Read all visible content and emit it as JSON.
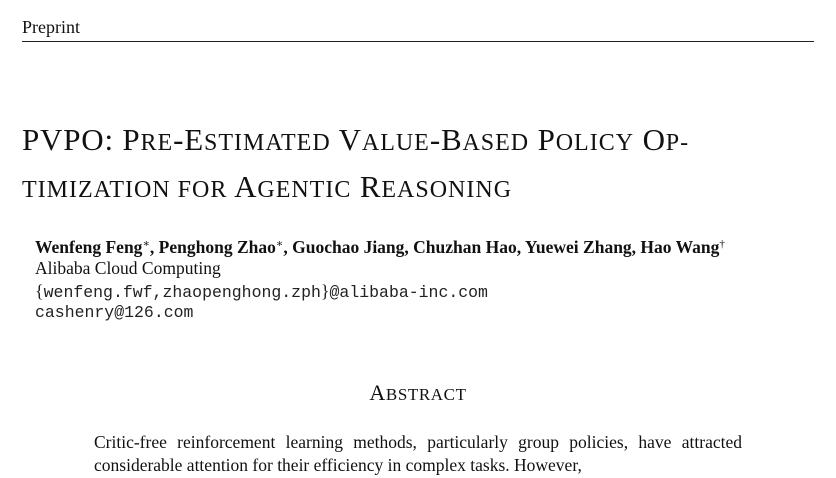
{
  "header": {
    "label": "Preprint"
  },
  "title": {
    "lead": "PVPO: P",
    "part1": "RE",
    "part2": "-E",
    "part3": "STIMATED",
    "part4": " V",
    "part5": "ALUE",
    "part6": "-B",
    "part7": "ASED",
    "part8": " P",
    "part9": "OLICY",
    "part10": " O",
    "part11": "P-",
    "part12": "TIMIZATION FOR",
    "part13": " A",
    "part14": "GENTIC",
    "part15": " R",
    "part16": "EASONING"
  },
  "authors": [
    {
      "name": "Wenfeng Feng",
      "mark": "∗",
      "sep": ", "
    },
    {
      "name": "Penghong Zhao",
      "mark": "∗",
      "sep": ", "
    },
    {
      "name": "Guochao Jiang",
      "mark": "",
      "sep": ", "
    },
    {
      "name": "Chuzhan Hao",
      "mark": "",
      "sep": ", "
    },
    {
      "name": "Yuewei Zhang",
      "mark": "",
      "sep": ", "
    },
    {
      "name": "Hao Wang",
      "mark": "†",
      "sep": ""
    }
  ],
  "affiliation": "Alibaba Cloud Computing",
  "emails": {
    "open_brace": "{",
    "line1_names": "wenfeng.fwf,zhaopenghong.zph",
    "close_brace": "}",
    "line1_domain": "@alibaba-inc.com",
    "line2": "cashenry@126.com"
  },
  "abstract": {
    "heading_lead": "A",
    "heading_rest": "BSTRACT",
    "body": "Critic-free reinforcement learning methods, particularly group policies, have attracted considerable attention for their efficiency in complex tasks. However,"
  }
}
